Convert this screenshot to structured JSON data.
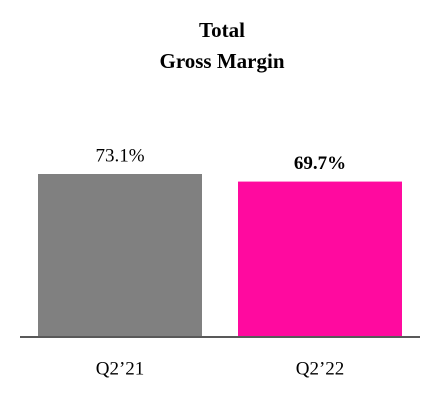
{
  "chart_data": {
    "type": "bar",
    "title": [
      "Total",
      "Gross Margin"
    ],
    "categories": [
      "Q2’21",
      "Q2’22"
    ],
    "values": [
      73.1,
      69.7
    ],
    "value_labels": [
      "73.1%",
      "69.7%"
    ],
    "colors": [
      "#808080",
      "#ff0a9f"
    ]
  }
}
